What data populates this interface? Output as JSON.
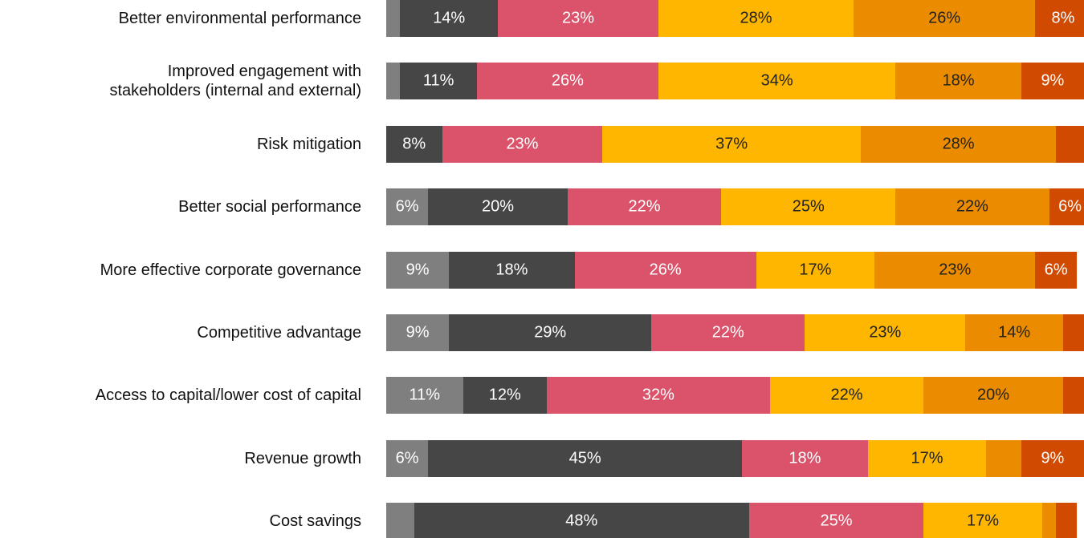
{
  "chart_data": {
    "type": "stacked_bar_horizontal",
    "categories": [
      "Better environmental performance",
      "Improved engagement with\nstakeholders (internal and external)",
      "Risk mitigation",
      "Better social performance",
      "More effective corporate governance",
      "Competitive advantage",
      "Access to capital/lower cost of capital",
      "Revenue growth",
      "Cost savings"
    ],
    "xlim": [
      0,
      100
    ],
    "series": [
      {
        "color": "#7f7f7f",
        "values": [
          2,
          2,
          0,
          6,
          9,
          9,
          11,
          6,
          4
        ],
        "value_labels": [
          null,
          null,
          null,
          "6%",
          "9%",
          "9%",
          "11%",
          "6%",
          null
        ]
      },
      {
        "color": "#464646",
        "values": [
          14,
          11,
          8,
          20,
          18,
          29,
          12,
          45,
          48
        ],
        "value_labels": [
          "14%",
          "11%",
          "8%",
          "20%",
          "18%",
          "29%",
          "12%",
          "45%",
          "48%"
        ]
      },
      {
        "color": "#db536a",
        "values": [
          23,
          26,
          23,
          22,
          26,
          22,
          32,
          18,
          25
        ],
        "value_labels": [
          "23%",
          "26%",
          "23%",
          "22%",
          "26%",
          "22%",
          "32%",
          "18%",
          "25%"
        ]
      },
      {
        "color": "#ffb600",
        "values": [
          28,
          34,
          37,
          25,
          17,
          23,
          22,
          17,
          17
        ],
        "value_labels": [
          "28%",
          "34%",
          "37%",
          "25%",
          "17%",
          "23%",
          "22%",
          "17%",
          "17%"
        ]
      },
      {
        "color": "#eb8c00",
        "values": [
          26,
          18,
          28,
          22,
          23,
          14,
          20,
          5,
          2
        ],
        "value_labels": [
          "26%",
          "18%",
          "28%",
          "22%",
          "23%",
          "14%",
          "20%",
          null,
          null
        ]
      },
      {
        "color": "#d04a02",
        "values": [
          8,
          9,
          4,
          6,
          6,
          3,
          3,
          9,
          3
        ],
        "value_labels": [
          "8%",
          "9%",
          null,
          "6%",
          "6%",
          null,
          null,
          "9%",
          null
        ]
      }
    ]
  }
}
